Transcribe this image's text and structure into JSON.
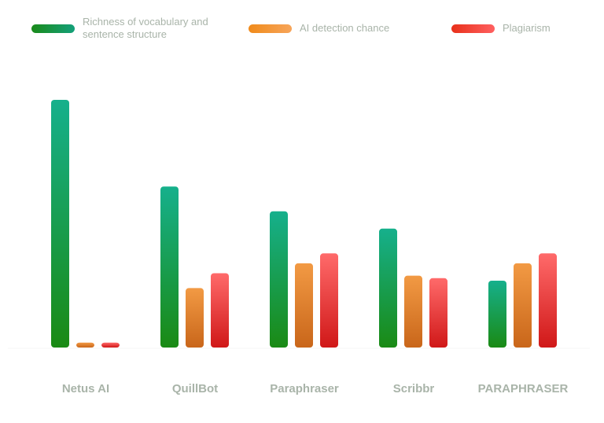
{
  "chart_data": {
    "type": "bar",
    "title": "",
    "xlabel": "",
    "ylabel": "",
    "ylim": [
      0,
      100
    ],
    "grid": false,
    "legend_position": "top",
    "categories": [
      "Netus AI",
      "QuillBot",
      "Paraphraser",
      "Scribbr",
      "PARAPHRASER"
    ],
    "series": [
      {
        "name": "Richness of vocabulary and sentence structure",
        "values": [
          100,
          65,
          55,
          48,
          27
        ],
        "color": "#1a8f2a"
      },
      {
        "name": "AI detection chance",
        "values": [
          2,
          24,
          34,
          29,
          34
        ],
        "color": "#e8821e"
      },
      {
        "name": "Plagiarism",
        "values": [
          2,
          30,
          38,
          28,
          38
        ],
        "color": "#e02a2a"
      }
    ]
  }
}
